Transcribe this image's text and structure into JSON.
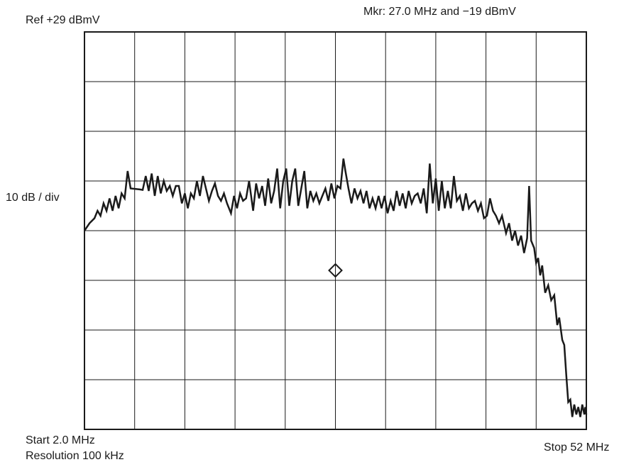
{
  "labels": {
    "ref": "Ref +29 dBmV",
    "marker": "Mkr: 27.0 MHz and −19 dBmV",
    "scale": "10 dB / div",
    "start": "Start 2.0 MHz",
    "resolution": "Resolution 100 kHz",
    "stop": "Stop 52 MHz"
  },
  "chart_data": {
    "type": "line",
    "title": "",
    "xlabel": "",
    "ylabel": "",
    "x_unit": "MHz",
    "y_unit": "dBmV",
    "xlim": [
      2.0,
      52.0
    ],
    "ylim": [
      -51,
      29
    ],
    "x_divisions": 10,
    "y_divisions": 8,
    "grid": true,
    "marker": {
      "x": 27.0,
      "y": -19
    },
    "series": [
      {
        "color": "#1a1a1a",
        "points": [
          [
            2.0,
            -11.0
          ],
          [
            2.5,
            -9.5
          ],
          [
            3.0,
            -8.5
          ],
          [
            3.3,
            -7.0
          ],
          [
            3.6,
            -8.0
          ],
          [
            3.9,
            -5.5
          ],
          [
            4.2,
            -7.0
          ],
          [
            4.5,
            -4.5
          ],
          [
            4.8,
            -7.0
          ],
          [
            5.1,
            -4.0
          ],
          [
            5.4,
            -6.5
          ],
          [
            5.7,
            -3.5
          ],
          [
            6.0,
            -4.5
          ],
          [
            6.3,
            1.0
          ],
          [
            6.6,
            -2.5
          ],
          [
            7.5,
            -2.7
          ],
          [
            7.8,
            -2.8
          ],
          [
            8.1,
            0.0
          ],
          [
            8.4,
            -3.0
          ],
          [
            8.7,
            0.5
          ],
          [
            9.0,
            -4.0
          ],
          [
            9.3,
            0.0
          ],
          [
            9.6,
            -3.5
          ],
          [
            9.9,
            -1.0
          ],
          [
            10.2,
            -3.0
          ],
          [
            10.5,
            -2.0
          ],
          [
            10.8,
            -4.0
          ],
          [
            11.1,
            -2.0
          ],
          [
            11.4,
            -2.0
          ],
          [
            11.7,
            -5.5
          ],
          [
            12.0,
            -3.5
          ],
          [
            12.3,
            -6.5
          ],
          [
            12.6,
            -3.5
          ],
          [
            12.9,
            -4.5
          ],
          [
            13.2,
            -1.0
          ],
          [
            13.5,
            -4.0
          ],
          [
            13.8,
            0.0
          ],
          [
            14.1,
            -2.5
          ],
          [
            14.4,
            -5.0
          ],
          [
            14.7,
            -3.0
          ],
          [
            15.0,
            -1.5
          ],
          [
            15.3,
            -4.0
          ],
          [
            15.6,
            -5.0
          ],
          [
            15.9,
            -3.5
          ],
          [
            16.2,
            -5.5
          ],
          [
            16.6,
            -7.5
          ],
          [
            16.9,
            -4.0
          ],
          [
            17.2,
            -6.5
          ],
          [
            17.5,
            -3.5
          ],
          [
            17.8,
            -5.0
          ],
          [
            18.1,
            -4.5
          ],
          [
            18.4,
            -1.0
          ],
          [
            18.8,
            -7.0
          ],
          [
            19.1,
            -1.5
          ],
          [
            19.4,
            -4.5
          ],
          [
            19.7,
            -2.0
          ],
          [
            20.0,
            -6.0
          ],
          [
            20.3,
            -0.5
          ],
          [
            20.6,
            -5.5
          ],
          [
            20.9,
            -3.0
          ],
          [
            21.2,
            1.5
          ],
          [
            21.5,
            -6.5
          ],
          [
            21.8,
            -1.0
          ],
          [
            22.1,
            1.5
          ],
          [
            22.4,
            -6.0
          ],
          [
            22.7,
            -1.0
          ],
          [
            23.0,
            1.5
          ],
          [
            23.3,
            -6.0
          ],
          [
            23.6,
            -2.5
          ],
          [
            23.9,
            1.0
          ],
          [
            24.2,
            -6.5
          ],
          [
            24.5,
            -3.0
          ],
          [
            24.8,
            -5.0
          ],
          [
            25.1,
            -3.5
          ],
          [
            25.4,
            -5.5
          ],
          [
            25.7,
            -4.0
          ],
          [
            26.0,
            -2.5
          ],
          [
            26.3,
            -5.0
          ],
          [
            26.6,
            -1.5
          ],
          [
            26.9,
            -4.5
          ],
          [
            27.2,
            -2.0
          ],
          [
            27.5,
            -2.5
          ],
          [
            27.8,
            3.5
          ],
          [
            28.0,
            1.0
          ],
          [
            28.3,
            -2.5
          ],
          [
            28.6,
            -5.5
          ],
          [
            28.9,
            -2.5
          ],
          [
            29.2,
            -4.5
          ],
          [
            29.5,
            -3.0
          ],
          [
            29.8,
            -5.5
          ],
          [
            30.1,
            -3.0
          ],
          [
            30.4,
            -6.5
          ],
          [
            30.7,
            -4.5
          ],
          [
            31.0,
            -6.5
          ],
          [
            31.3,
            -4.0
          ],
          [
            31.6,
            -6.5
          ],
          [
            31.9,
            -4.0
          ],
          [
            32.2,
            -7.5
          ],
          [
            32.5,
            -5.0
          ],
          [
            32.8,
            -7.0
          ],
          [
            33.1,
            -3.0
          ],
          [
            33.4,
            -6.0
          ],
          [
            33.7,
            -3.5
          ],
          [
            34.0,
            -6.5
          ],
          [
            34.3,
            -3.0
          ],
          [
            34.6,
            -5.5
          ],
          [
            34.9,
            -4.0
          ],
          [
            35.2,
            -3.5
          ],
          [
            35.5,
            -5.5
          ],
          [
            35.8,
            -2.5
          ],
          [
            36.1,
            -7.5
          ],
          [
            36.4,
            2.5
          ],
          [
            36.7,
            -5.5
          ],
          [
            37.0,
            -0.5
          ],
          [
            37.3,
            -7.0
          ],
          [
            37.6,
            -1.0
          ],
          [
            37.9,
            -6.5
          ],
          [
            38.2,
            -3.0
          ],
          [
            38.5,
            -6.5
          ],
          [
            38.8,
            0.0
          ],
          [
            39.1,
            -5.0
          ],
          [
            39.4,
            -4.0
          ],
          [
            39.7,
            -7.0
          ],
          [
            40.0,
            -3.5
          ],
          [
            40.3,
            -6.5
          ],
          [
            40.6,
            -5.5
          ],
          [
            40.9,
            -5.0
          ],
          [
            41.2,
            -7.0
          ],
          [
            41.5,
            -5.5
          ],
          [
            41.8,
            -8.5
          ],
          [
            42.1,
            -8.0
          ],
          [
            42.4,
            -4.5
          ],
          [
            42.7,
            -7.0
          ],
          [
            43.0,
            -8.0
          ],
          [
            43.3,
            -9.5
          ],
          [
            43.6,
            -8.0
          ],
          [
            44.0,
            -11.5
          ],
          [
            44.3,
            -9.5
          ],
          [
            44.6,
            -13.0
          ],
          [
            44.9,
            -11.0
          ],
          [
            45.2,
            -14.0
          ],
          [
            45.5,
            -12.0
          ],
          [
            45.8,
            -15.5
          ],
          [
            46.1,
            -12.5
          ],
          [
            46.3,
            -2.0
          ],
          [
            46.5,
            -13.0
          ],
          [
            46.8,
            -14.5
          ],
          [
            47.0,
            -17.5
          ],
          [
            47.2,
            -16.5
          ],
          [
            47.4,
            -20.0
          ],
          [
            47.6,
            -18.0
          ],
          [
            47.9,
            -23.5
          ],
          [
            48.2,
            -22.0
          ],
          [
            48.5,
            -25.0
          ],
          [
            48.8,
            -24.0
          ],
          [
            49.1,
            -30.0
          ],
          [
            49.3,
            -28.5
          ],
          [
            49.6,
            -33.0
          ],
          [
            49.8,
            -34.0
          ],
          [
            50.0,
            -40.0
          ],
          [
            50.2,
            -45.5
          ],
          [
            50.4,
            -45.0
          ],
          [
            50.6,
            -48.5
          ],
          [
            50.8,
            -46.0
          ],
          [
            51.0,
            -48.0
          ],
          [
            51.2,
            -46.5
          ],
          [
            51.4,
            -48.5
          ],
          [
            51.6,
            -46.0
          ],
          [
            51.8,
            -48.0
          ],
          [
            51.9,
            -46.5
          ],
          [
            52.0,
            -48.0
          ]
        ]
      }
    ]
  }
}
